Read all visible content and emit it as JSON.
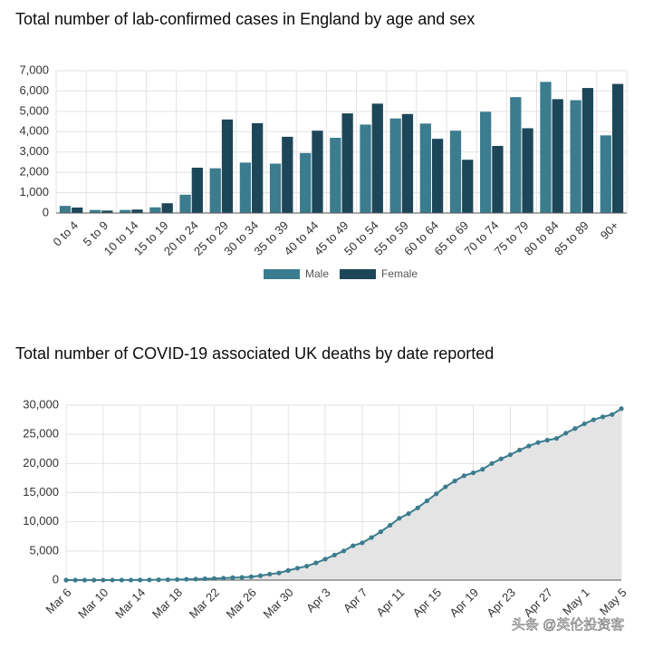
{
  "chart_data": [
    {
      "type": "bar",
      "title": "Total number of lab-confirmed cases in England by age and sex",
      "categories": [
        "0 to 4",
        "5 to 9",
        "10 to 14",
        "15 to 19",
        "20 to 24",
        "25 to 29",
        "30 to 34",
        "35 to 39",
        "40 to 44",
        "45 to 49",
        "50 to 54",
        "55 to 59",
        "60 to 64",
        "65 to 69",
        "70 to 74",
        "75 to 79",
        "80 to 84",
        "85 to 89",
        "90+"
      ],
      "series": [
        {
          "name": "Male",
          "color": "#3b7c8e",
          "values": [
            350,
            150,
            150,
            280,
            900,
            2200,
            2480,
            2430,
            2950,
            3700,
            4350,
            4650,
            4400,
            4050,
            4980,
            5700,
            6450,
            5550,
            3820
          ]
        },
        {
          "name": "Female",
          "color": "#1d4759",
          "values": [
            270,
            120,
            170,
            480,
            2230,
            4600,
            4420,
            3750,
            4050,
            4900,
            5380,
            4870,
            3650,
            2620,
            3300,
            4170,
            5600,
            6150,
            6350
          ]
        }
      ],
      "ylim": [
        0,
        7000
      ],
      "yticks": [
        0,
        {
          "value": 1000,
          "label": "1,000"
        },
        {
          "value": 2000,
          "label": "2,000"
        },
        {
          "value": 3000,
          "label": "3,000"
        },
        {
          "value": 4000,
          "label": "4,000"
        },
        {
          "value": 5000,
          "label": "5,000"
        },
        {
          "value": 6000,
          "label": "6,000"
        },
        {
          "value": 7000,
          "label": "7,000"
        }
      ],
      "grid": true,
      "legend": "bottom"
    },
    {
      "type": "line",
      "title": "Total number of COVID-19 associated UK deaths by date reported",
      "categories": [
        "Mar 6",
        null,
        null,
        null,
        "Mar 10",
        null,
        null,
        null,
        "Mar 14",
        null,
        null,
        null,
        "Mar 18",
        null,
        null,
        null,
        "Mar 22",
        null,
        null,
        null,
        "Mar 26",
        null,
        null,
        null,
        "Mar 30",
        null,
        null,
        null,
        "Apr 3",
        null,
        null,
        null,
        "Apr 7",
        null,
        null,
        null,
        "Apr 11",
        null,
        null,
        null,
        "Apr 15",
        null,
        null,
        null,
        "Apr 19",
        null,
        null,
        null,
        "Apr 23",
        null,
        null,
        null,
        "Apr 27",
        null,
        null,
        null,
        "May 1",
        null,
        null,
        null,
        "May 5"
      ],
      "values": [
        1,
        2,
        3,
        4,
        6,
        8,
        10,
        11,
        21,
        35,
        55,
        71,
        104,
        144,
        177,
        233,
        281,
        335,
        422,
        465,
        578,
        759,
        1019,
        1228,
        1650,
        2050,
        2400,
        2950,
        3600,
        4300,
        5000,
        5900,
        6400,
        7300,
        8300,
        9400,
        10600,
        11400,
        12400,
        13600,
        14800,
        16000,
        17000,
        17900,
        18400,
        19000,
        20000,
        20800,
        21500,
        22300,
        23000,
        23600,
        24000,
        24300,
        25200,
        26000,
        26800,
        27500,
        28000,
        28400,
        29400
      ],
      "color": "#3b7c8e",
      "area_color": "#e4e4e4",
      "ylim": [
        0,
        30000
      ],
      "yticks": [
        0,
        {
          "value": 5000,
          "label": "5,000"
        },
        {
          "value": 10000,
          "label": "10,000"
        },
        {
          "value": 15000,
          "label": "15,000"
        },
        {
          "value": 20000,
          "label": "20,000"
        },
        {
          "value": 25000,
          "label": "25,000"
        },
        {
          "value": 30000,
          "label": "30,000"
        }
      ],
      "grid": true
    }
  ],
  "watermark": "头条 @英伦投资客"
}
